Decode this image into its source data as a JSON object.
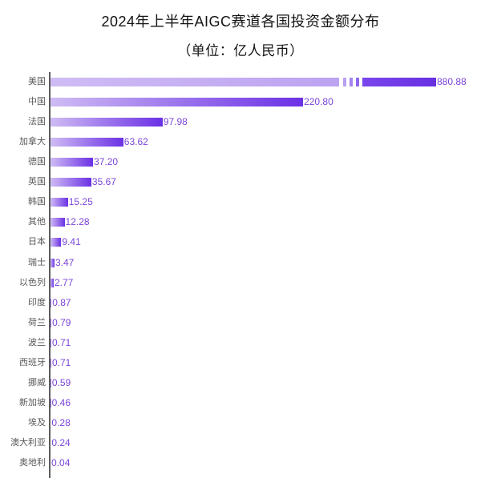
{
  "header": {
    "title": "2024年上半年AIGC赛道各国投资金额分布",
    "subtitle": "（单位：亿人民币）"
  },
  "colors": {
    "title_text": "#141414",
    "category_text": "#595959",
    "value_text": "#7b45d9",
    "axis_line": "#5c5c5c",
    "bar_gradient_start": "#cfbcf4",
    "bar_gradient_end": "#6b31e5",
    "break_segment_1": "#b9a1f1",
    "break_segment_2": "#a585ee",
    "break_segment_3": "#8f66ee"
  },
  "chart_data": {
    "type": "bar",
    "orientation": "horizontal",
    "title": "2024年上半年AIGC赛道各国投资金额分布",
    "subtitle": "（单位：亿人民币）",
    "xlabel": "",
    "ylabel": "",
    "unit": "亿人民币",
    "grid": false,
    "legend": false,
    "value_labels_shown": true,
    "axis_break_on_first_bar": true,
    "categories": [
      "美国",
      "中国",
      "法国",
      "加拿大",
      "德国",
      "英国",
      "韩国",
      "其他",
      "日本",
      "瑞士",
      "以色列",
      "印度",
      "荷兰",
      "波兰",
      "西班牙",
      "挪威",
      "新加坡",
      "埃及",
      "澳大利亚",
      "奥地利"
    ],
    "values": [
      880.88,
      220.8,
      97.98,
      63.62,
      37.2,
      35.67,
      15.25,
      12.28,
      9.41,
      3.47,
      2.77,
      0.87,
      0.79,
      0.71,
      0.71,
      0.59,
      0.46,
      0.28,
      0.24,
      0.04
    ],
    "value_labels": [
      "880.88",
      "220.80",
      "97.98",
      "63.62",
      "37.20",
      "35.67",
      "15.25",
      "12.28",
      "9.41",
      "3.47",
      "2.77",
      "0.87",
      "0.79",
      "0.71",
      "0.71",
      "0.59",
      "0.46",
      "0.28",
      "0.24",
      "0.04"
    ]
  }
}
